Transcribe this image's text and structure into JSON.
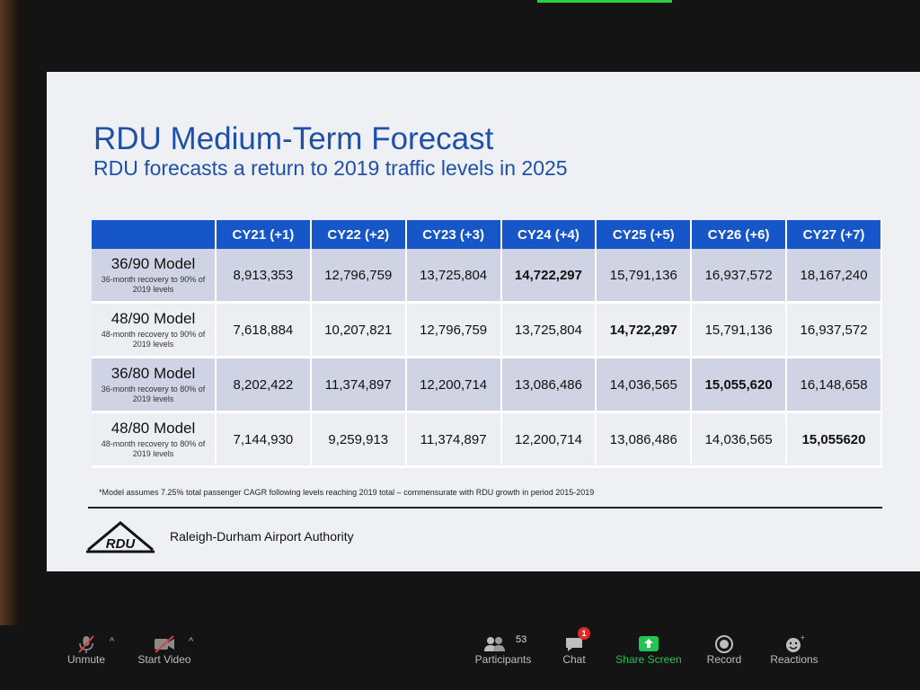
{
  "slide": {
    "title": "RDU Medium-Term Forecast",
    "subtitle": "RDU forecasts a return to 2019 traffic levels in 2025",
    "columns": [
      "CY21 (+1)",
      "CY22 (+2)",
      "CY23 (+3)",
      "CY24 (+4)",
      "CY25 (+5)",
      "CY26 (+6)",
      "CY27 (+7)"
    ],
    "rows": [
      {
        "name": "36/90 Model",
        "description": "36-month recovery to 90% of 2019 levels",
        "values": [
          "8,913,353",
          "12,796,759",
          "13,725,804",
          "14,722,297",
          "15,791,136",
          "16,937,572",
          "18,167,240"
        ],
        "bold_col": 3
      },
      {
        "name": "48/90 Model",
        "description": "48-month recovery to 90% of 2019 levels",
        "values": [
          "7,618,884",
          "10,207,821",
          "12,796,759",
          "13,725,804",
          "14,722,297",
          "15,791,136",
          "16,937,572"
        ],
        "bold_col": 4
      },
      {
        "name": "36/80 Model",
        "description": "36-month recovery to 80% of 2019 levels",
        "values": [
          "8,202,422",
          "11,374,897",
          "12,200,714",
          "13,086,486",
          "14,036,565",
          "15,055,620",
          "16,148,658"
        ],
        "bold_col": 5
      },
      {
        "name": "48/80 Model",
        "description": "48-month recovery to 80% of 2019 levels",
        "values": [
          "7,144,930",
          "9,259,913",
          "11,374,897",
          "12,200,714",
          "13,086,486",
          "14,036,565",
          "15,055620"
        ],
        "bold_col": 6
      }
    ],
    "footnote": "*Model assumes 7.25% total passenger CAGR following levels reaching 2019 total – commensurate with RDU growth in period 2015-2019",
    "logo_text": "RDU",
    "organization": "Raleigh-Durham Airport Authority"
  },
  "toolbar": {
    "unmute": {
      "label": "Unmute",
      "icon": "muted-microphone-icon"
    },
    "start_video": {
      "label": "Start Video",
      "icon": "video-off-icon"
    },
    "participants": {
      "label": "Participants",
      "count": "53",
      "icon": "participants-icon"
    },
    "chat": {
      "label": "Chat",
      "badge": "1",
      "icon": "chat-icon"
    },
    "share_screen": {
      "label": "Share Screen",
      "icon": "share-screen-icon"
    },
    "record": {
      "label": "Record",
      "icon": "record-icon"
    },
    "reactions": {
      "label": "Reactions",
      "icon": "reactions-icon"
    }
  },
  "colors": {
    "title_blue": "#1f50a8",
    "header_blue": "#1656c8",
    "row_shaded": "#cfd3e3",
    "row_light": "#eceef2",
    "share_green": "#23c552",
    "badge_red": "#e02828"
  }
}
